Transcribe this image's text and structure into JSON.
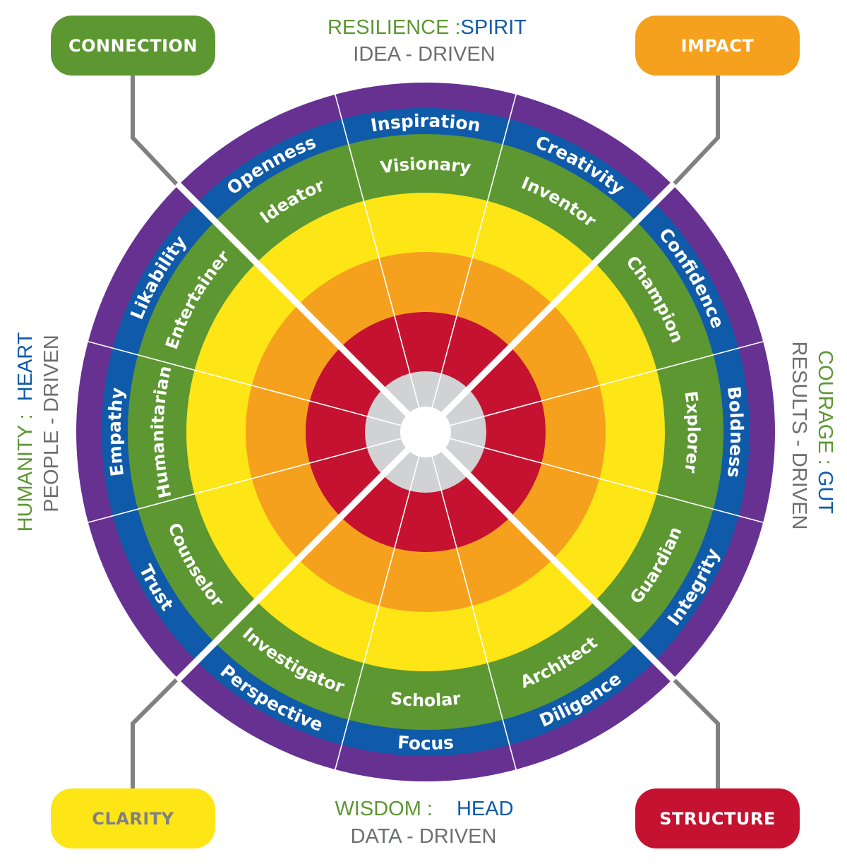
{
  "colors": {
    "purple": "#673192",
    "blue": "#0f5ba9",
    "green": "#5c9732",
    "yellow": "#fde516",
    "orange": "#f5a11d",
    "red": "#c41230",
    "gray": "#d1d2d4",
    "connector": "#808083",
    "text_gray": "#6d6e71"
  },
  "top_label": {
    "left": "RESILIENCE :",
    "right": "SPIRIT",
    "sub": "IDEA - DRIVEN"
  },
  "left_label": {
    "left": "HUMANITY :",
    "right": "HEART",
    "sub": "PEOPLE - DRIVEN"
  },
  "right_label": {
    "left": "COURAGE :",
    "right": "GUT",
    "sub": "RESULTS - DRIVEN"
  },
  "bottom_label": {
    "left": "WISDOM :",
    "right": "HEAD",
    "sub": "DATA - DRIVEN"
  },
  "corners": {
    "connection": {
      "label": "CONNECTION",
      "color": "#5c9732",
      "text_color": "#ffffff"
    },
    "impact": {
      "label": "IMPACT",
      "color": "#f6a11d",
      "text_color": "#ffffff"
    },
    "clarity": {
      "label": "CLARITY",
      "color": "#fde516",
      "text_color": "#808083"
    },
    "structure": {
      "label": "STRUCTURE",
      "color": "#c41230",
      "text_color": "#ffffff"
    }
  },
  "segments": [
    {
      "angle": 90,
      "outer": "Inspiration",
      "inner": "Visionary"
    },
    {
      "angle": 60,
      "outer": "Creativity",
      "inner": "Inventor"
    },
    {
      "angle": 30,
      "outer": "Confidence",
      "inner": "Champion"
    },
    {
      "angle": 0,
      "outer": "Boldness",
      "inner": "Explorer"
    },
    {
      "angle": -30,
      "outer": "Integrity",
      "inner": "Guardian"
    },
    {
      "angle": -60,
      "outer": "Diligence",
      "inner": "Architect"
    },
    {
      "angle": -90,
      "outer": "Focus",
      "inner": "Scholar"
    },
    {
      "angle": -120,
      "outer": "Perspective",
      "inner": "Investigator"
    },
    {
      "angle": -150,
      "outer": "Trust",
      "inner": "Counselor"
    },
    {
      "angle": 180,
      "outer": "Empathy",
      "inner": "Humanitarian"
    },
    {
      "angle": 150,
      "outer": "Likability",
      "inner": "Entertainer"
    },
    {
      "angle": 120,
      "outer": "Openness",
      "inner": "Ideator"
    }
  ]
}
